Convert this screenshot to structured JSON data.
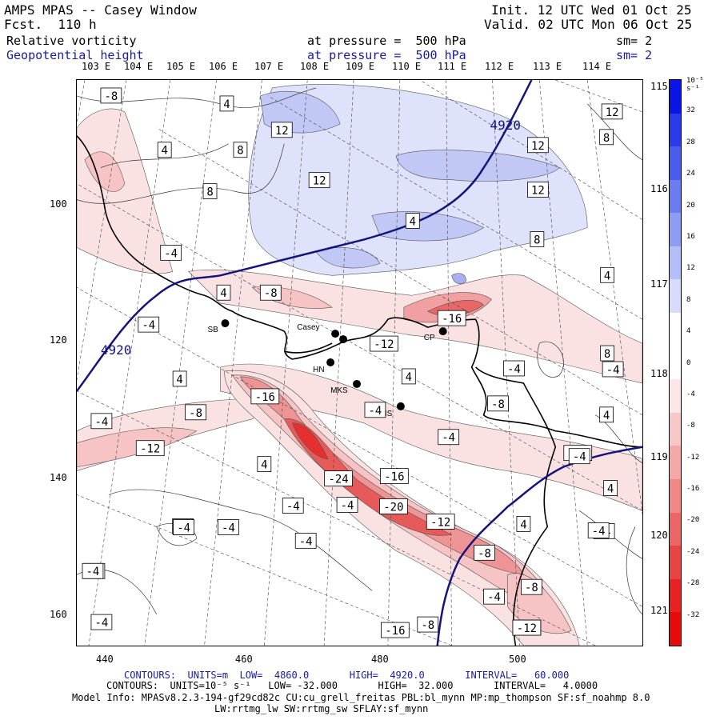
{
  "header": {
    "model": "AMPS MPAS -- Casey Window",
    "forecast": "Fcst.  110 h",
    "init": "Init. 12 UTC Wed 01 Oct 25",
    "valid": "Valid. 02 UTC Mon 06 Oct 25",
    "field1": "Relative vorticity",
    "field1_level": "at pressure =  500 hPa",
    "field1_sm": "sm= 2",
    "field2": "Geopotential height",
    "field2_level": "at pressure =  500 hPa",
    "field2_sm": "sm= 2"
  },
  "lon_labels_top": [
    "103 E",
    "104 E",
    "105 E",
    "106 E",
    "107 E",
    "108 E",
    "109 E",
    "110 E",
    "111 E",
    "112 E",
    "113 E",
    "114 E"
  ],
  "lon_labels_right": [
    "115 E",
    "116 E",
    "117 E",
    "118 E",
    "119 E",
    "120 E",
    "121 E"
  ],
  "axes": {
    "x_ticks": [
      "440",
      "460",
      "480",
      "500"
    ],
    "y_ticks": [
      "100",
      "120",
      "140",
      "160"
    ]
  },
  "colorbar": {
    "unit": "10⁻⁵ s⁻¹",
    "labels": [
      "32",
      "28",
      "24",
      "20",
      "16",
      "12",
      "8",
      "4",
      "0",
      "-4",
      "-8",
      "-12",
      "-16",
      "-20",
      "-24",
      "-28",
      "-32"
    ],
    "colors": {
      "positive": [
        "#0a14e6",
        "#2a3ce8",
        "#4a5cec",
        "#6a7cf0",
        "#8e9cf4",
        "#b4bef8",
        "#d8dcfc"
      ],
      "negative": [
        "#fce6e6",
        "#f8c8c8",
        "#f4a8a8",
        "#f08888",
        "#ec6666",
        "#e84444",
        "#e62222",
        "#e60a0a"
      ]
    }
  },
  "stations": [
    {
      "code": "SB"
    },
    {
      "code": "Casey"
    },
    {
      "code": "HN"
    },
    {
      "code": "MKS"
    },
    {
      "code": "IS"
    },
    {
      "code": "CP"
    }
  ],
  "height_labels": [
    "4920",
    "4920"
  ],
  "vorticity_labels": [
    "-8",
    "4",
    "12",
    "8",
    "4",
    "12",
    "8",
    "12",
    "12",
    "8",
    "12",
    "8",
    "4",
    "8",
    "4",
    "-4",
    "-4",
    "-8",
    "-12",
    "-16",
    "-16",
    "-4",
    "4",
    "4",
    "-8",
    "-12",
    "-4",
    "4",
    "-4",
    "4",
    "-16",
    "-8",
    "-4",
    "-4",
    "-12",
    "-4",
    "-8",
    "-24",
    "4",
    "-4",
    "-4",
    "-4",
    "-20",
    "-12",
    "4",
    "-4",
    "4",
    "-4",
    "-4",
    "-4",
    "-16",
    "-8",
    "-8",
    "-12",
    "-4",
    "-4",
    "-4",
    "-4",
    "-4",
    "-12",
    "-8"
  ],
  "footer": {
    "line1": "CONTOURS:  UNITS=m  LOW=  4860.0       HIGH=  4920.0       INTERVAL=   60.000",
    "line2": "CONTOURS:  UNITS=10⁻⁵ s⁻¹   LOW= -32.000       HIGH=  32.000       INTERVAL=   4.0000",
    "line3": "Model Info: MPASv8.2.3-194-gf29cd82c CU:cu_grell_freitas PBL:bl_mynn MP:mp_thompson SF:sf_noahmp 8.0",
    "line4": "LW:rrtmg_lw SW:rrtmg_sw SFLAY:sf_mynn"
  }
}
